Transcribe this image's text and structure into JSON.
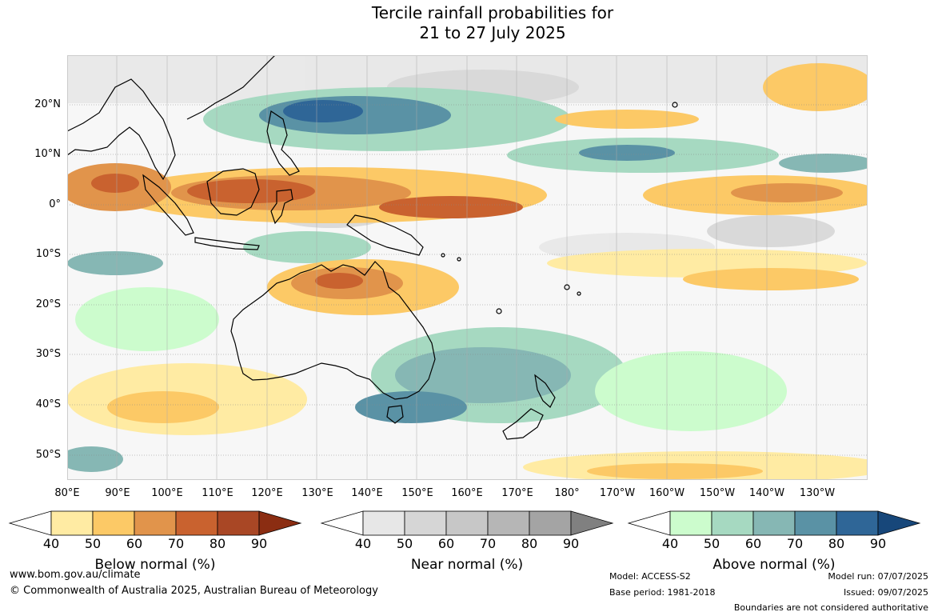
{
  "title": {
    "line1": "Tercile rainfall probabilities for",
    "line2": "21 to 27 July 2025"
  },
  "map": {
    "lat_labels": [
      "20°N",
      "10°N",
      "0°",
      "10°S",
      "20°S",
      "30°S",
      "40°S",
      "50°S"
    ],
    "lon_labels": [
      "80°E",
      "90°E",
      "100°E",
      "110°E",
      "120°E",
      "130°E",
      "140°E",
      "150°E",
      "160°E",
      "170°E",
      "180°",
      "170°W",
      "160°W",
      "150°W",
      "140°W",
      "130°W"
    ],
    "region": "Indian Ocean, Maritime Continent, Australia and Pacific Ocean"
  },
  "legends": [
    {
      "title": "Below normal (%)",
      "ticks": [
        "40",
        "50",
        "60",
        "70",
        "80",
        "90"
      ],
      "colors": [
        "#ffffff",
        "#ffeba3",
        "#fcc966",
        "#e1944b",
        "#c9622f",
        "#a94725",
        "#8b2d12"
      ]
    },
    {
      "title": "Near normal (%)",
      "ticks": [
        "40",
        "50",
        "60",
        "70",
        "80",
        "90"
      ],
      "colors": [
        "#ffffff",
        "#e7e7e7",
        "#d6d6d6",
        "#c7c7c7",
        "#b6b6b6",
        "#a4a4a4",
        "#808080"
      ]
    },
    {
      "title": "Above normal (%)",
      "ticks": [
        "40",
        "50",
        "60",
        "70",
        "80",
        "90"
      ],
      "colors": [
        "#ffffff",
        "#ccfccd",
        "#a6d9c1",
        "#86b7b4",
        "#5a92a5",
        "#2f6697",
        "#17477a"
      ]
    }
  ],
  "footer": {
    "url": "www.bom.gov.au/climate",
    "copyright": "© Commonwealth of Australia 2025, Australian Bureau of Meteorology",
    "model": "Model: ACCESS-S2",
    "base_period": "Base period: 1981-2018",
    "model_run": "Model run: 07/07/2025",
    "issued": "Issued: 09/07/2025",
    "disclaimer": "Boundaries are not considered authoritative"
  }
}
